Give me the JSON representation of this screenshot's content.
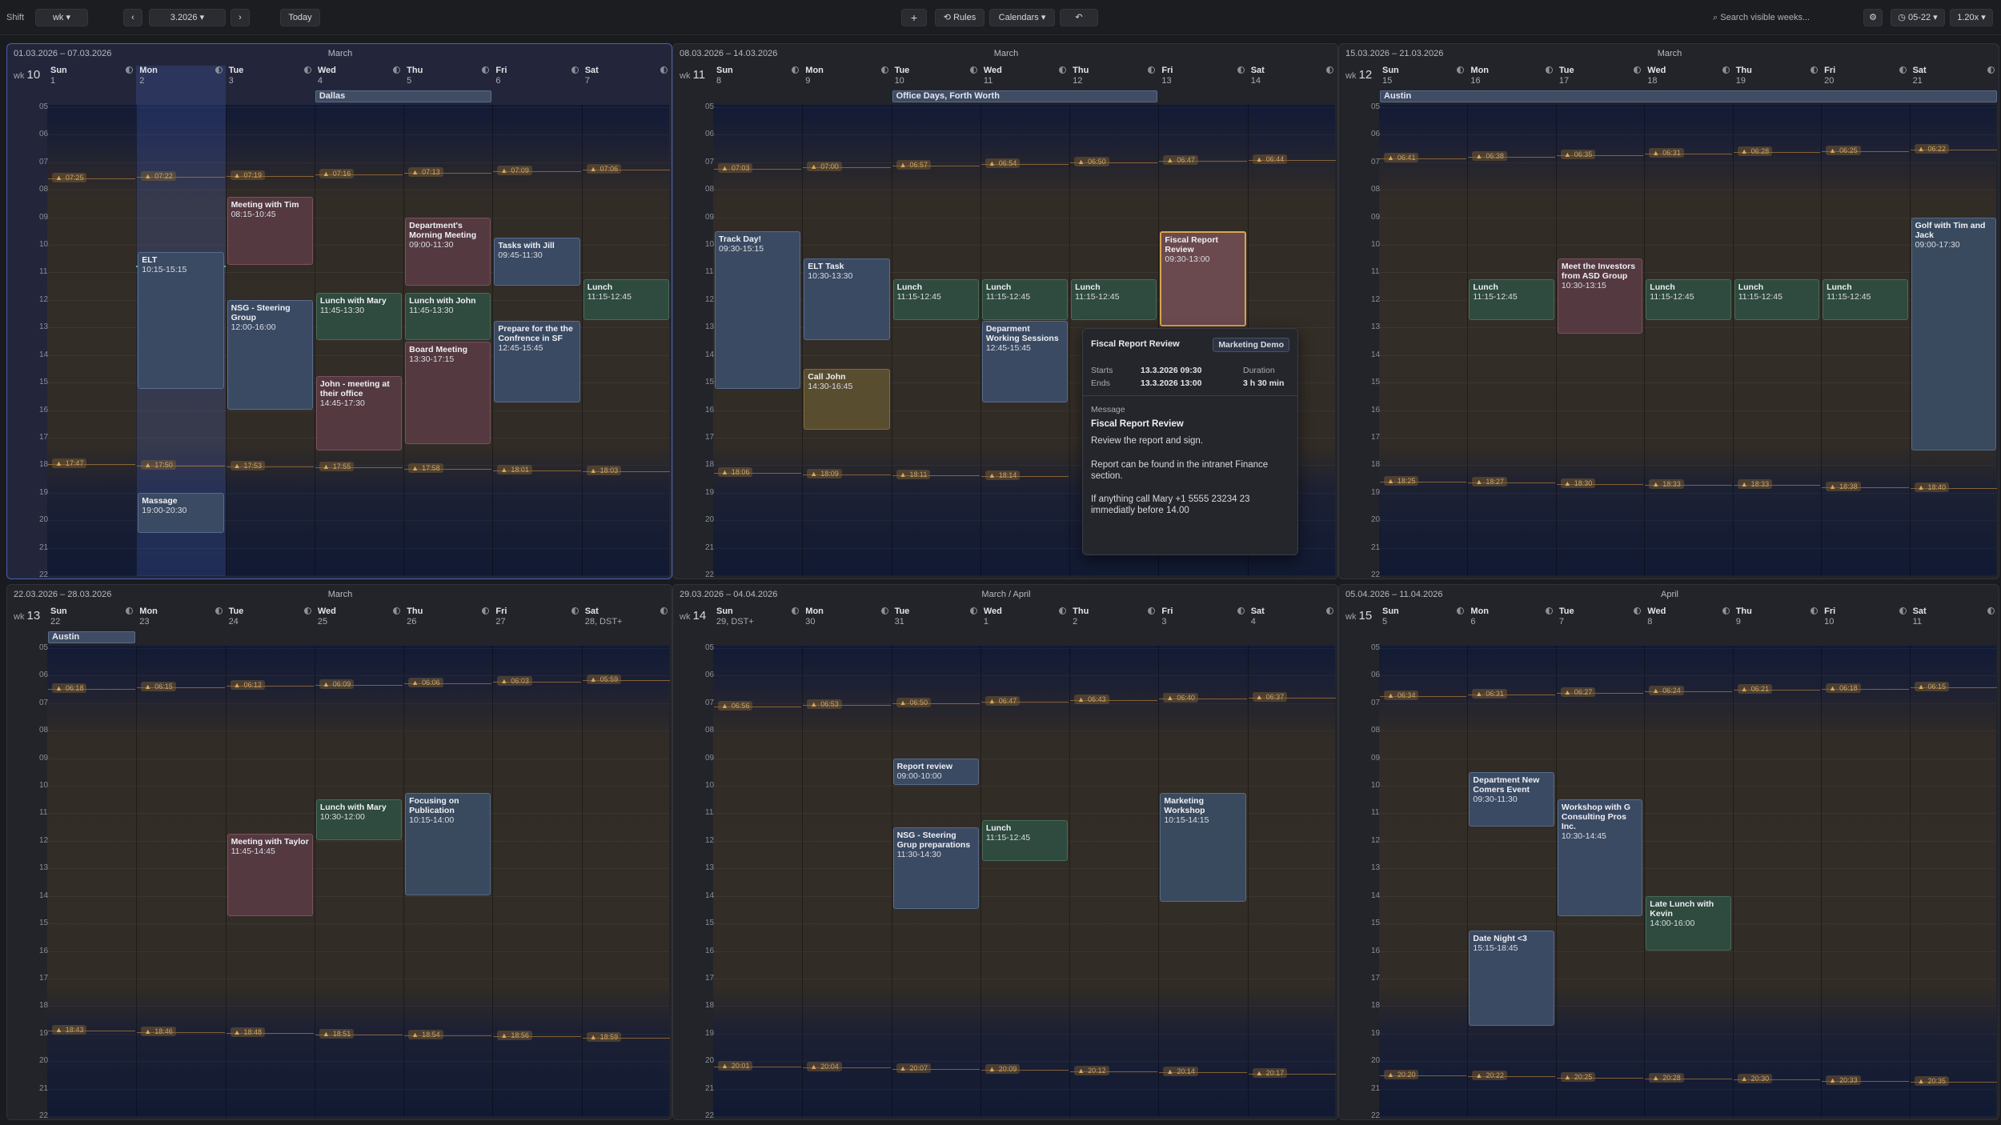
{
  "toolbar": {
    "shift_label": "Shift",
    "view_select": "wk",
    "date_select": "3.2026",
    "today_label": "Today",
    "add_label": "+",
    "rules_label": "Rules",
    "calendars_label": "Calendars",
    "search_placeholder": "Search visible weeks...",
    "hours_label": "05-22",
    "zoom_label": "1.20x"
  },
  "hours": [
    "05",
    "06",
    "07",
    "08",
    "09",
    "10",
    "11",
    "12",
    "13",
    "14",
    "15",
    "16",
    "17",
    "18",
    "19",
    "20",
    "21",
    "22"
  ],
  "weeks": [
    {
      "range": "01.03.2026 – 07.03.2026",
      "month": "March",
      "wk": "wk",
      "wknum": "10",
      "current": true,
      "days": [
        {
          "name": "Sun",
          "num": "1"
        },
        {
          "name": "Mon",
          "num": "2"
        },
        {
          "name": "Tue",
          "num": "3"
        },
        {
          "name": "Wed",
          "num": "4"
        },
        {
          "name": "Thu",
          "num": "5"
        },
        {
          "name": "Fri",
          "num": "6"
        },
        {
          "name": "Sat",
          "num": "7"
        }
      ],
      "today_col": 1,
      "now": 10.75,
      "sunrise": [
        "07:25",
        "07:22",
        "07:19",
        "07:16",
        "07:13",
        "07:09",
        "07:06"
      ],
      "sunset": [
        "17:47",
        "17:50",
        "17:53",
        "17:55",
        "17:58",
        "18:01",
        "18:03"
      ],
      "allday": [
        {
          "title": "Dallas",
          "start": 3,
          "end": 5
        }
      ],
      "events": [
        {
          "title": "Meeting with Tim",
          "time": "08:15-10:45",
          "day": 2,
          "start": 8.25,
          "end": 10.75,
          "color": "red"
        },
        {
          "title": "ELT",
          "time": "10:15-15:15",
          "day": 1,
          "start": 10.25,
          "end": 15.25,
          "color": "blue"
        },
        {
          "title": "NSG - Steering Group",
          "time": "12:00-16:00",
          "day": 2,
          "start": 12,
          "end": 16,
          "color": "blue"
        },
        {
          "title": "Lunch with Mary",
          "time": "11:45-13:30",
          "day": 3,
          "start": 11.75,
          "end": 13.5,
          "color": "green"
        },
        {
          "title": "John - meeting at their office",
          "time": "14:45-17:30",
          "day": 3,
          "start": 14.75,
          "end": 17.5,
          "color": "red"
        },
        {
          "title": "Department's Morning Meeting",
          "time": "09:00-11:30",
          "day": 4,
          "start": 9,
          "end": 11.5,
          "color": "red"
        },
        {
          "title": "Lunch with John",
          "time": "11:45-13:30",
          "day": 4,
          "start": 11.75,
          "end": 13.5,
          "color": "green"
        },
        {
          "title": "Board Meeting",
          "time": "13:30-17:15",
          "day": 4,
          "start": 13.5,
          "end": 17.25,
          "color": "red"
        },
        {
          "title": "Tasks with Jill",
          "time": "09:45-11:30",
          "day": 5,
          "start": 9.75,
          "end": 11.5,
          "color": "blue"
        },
        {
          "title": "Prepare for the the Confrence in SF",
          "time": "12:45-15:45",
          "day": 5,
          "start": 12.75,
          "end": 15.75,
          "color": "blue"
        },
        {
          "title": "Lunch",
          "time": "11:15-12:45",
          "day": 6,
          "start": 11.25,
          "end": 12.75,
          "color": "green"
        },
        {
          "title": "Massage",
          "time": "19:00-20:30",
          "day": 1,
          "start": 19,
          "end": 20.5,
          "color": "blue"
        }
      ]
    },
    {
      "range": "08.03.2026 – 14.03.2026",
      "month": "March",
      "wk": "wk",
      "wknum": "11",
      "current": false,
      "days": [
        {
          "name": "Sun",
          "num": "8"
        },
        {
          "name": "Mon",
          "num": "9"
        },
        {
          "name": "Tue",
          "num": "10"
        },
        {
          "name": "Wed",
          "num": "11"
        },
        {
          "name": "Thu",
          "num": "12"
        },
        {
          "name": "Fri",
          "num": "13"
        },
        {
          "name": "Sat",
          "num": "14"
        }
      ],
      "sunrise": [
        "07:03",
        "07:00",
        "06:57",
        "06:54",
        "06:50",
        "06:47",
        "06:44"
      ],
      "sunset": [
        "18:06",
        "18:09",
        "18:11",
        "18:14",
        "",
        "",
        ""
      ],
      "allday": [
        {
          "title": "Office Days, Forth Worth",
          "start": 2,
          "end": 5
        }
      ],
      "events": [
        {
          "title": "Track Day!",
          "time": "09:30-15:15",
          "day": 0,
          "start": 9.5,
          "end": 15.25,
          "color": "blue"
        },
        {
          "title": "ELT Task",
          "time": "10:30-13:30",
          "day": 1,
          "start": 10.5,
          "end": 13.5,
          "color": "blue"
        },
        {
          "title": "Call John",
          "time": "14:30-16:45",
          "day": 1,
          "start": 14.5,
          "end": 16.75,
          "color": "olive"
        },
        {
          "title": "Lunch",
          "time": "11:15-12:45",
          "day": 2,
          "start": 11.25,
          "end": 12.75,
          "color": "green"
        },
        {
          "title": "Lunch",
          "time": "11:15-12:45",
          "day": 3,
          "start": 11.25,
          "end": 12.75,
          "color": "green"
        },
        {
          "title": "Deparment Working Sessions",
          "time": "12:45-15:45",
          "day": 3,
          "start": 12.75,
          "end": 15.75,
          "color": "blue"
        },
        {
          "title": "Lunch",
          "time": "11:15-12:45",
          "day": 4,
          "start": 11.25,
          "end": 12.75,
          "color": "green"
        },
        {
          "title": "Fiscal Report Review",
          "time": "09:30-13:00",
          "day": 5,
          "start": 9.5,
          "end": 13,
          "color": "sel"
        }
      ]
    },
    {
      "range": "15.03.2026 – 21.03.2026",
      "month": "March",
      "wk": "wk",
      "wknum": "12",
      "current": false,
      "days": [
        {
          "name": "Sun",
          "num": "15"
        },
        {
          "name": "Mon",
          "num": "16"
        },
        {
          "name": "Tue",
          "num": "17"
        },
        {
          "name": "Wed",
          "num": "18"
        },
        {
          "name": "Thu",
          "num": "19"
        },
        {
          "name": "Fri",
          "num": "20"
        },
        {
          "name": "Sat",
          "num": "21"
        }
      ],
      "sunrise": [
        "06:41",
        "06:38",
        "06:35",
        "06:31",
        "06:28",
        "06:25",
        "06:22"
      ],
      "sunset": [
        "18:25",
        "18:27",
        "18:30",
        "18:33",
        "18:33",
        "18:38",
        "18:40"
      ],
      "allday": [
        {
          "title": "Austin",
          "start": 0,
          "end": 7
        }
      ],
      "events": [
        {
          "title": "Lunch",
          "time": "11:15-12:45",
          "day": 1,
          "start": 11.25,
          "end": 12.75,
          "color": "green"
        },
        {
          "title": "Meet the Investors from ASD Group",
          "time": "10:30-13:15",
          "day": 2,
          "start": 10.5,
          "end": 13.25,
          "color": "red"
        },
        {
          "title": "Lunch",
          "time": "11:15-12:45",
          "day": 3,
          "start": 11.25,
          "end": 12.75,
          "color": "green"
        },
        {
          "title": "Lunch",
          "time": "11:15-12:45",
          "day": 4,
          "start": 11.25,
          "end": 12.75,
          "color": "green"
        },
        {
          "title": "Lunch",
          "time": "11:15-12:45",
          "day": 5,
          "start": 11.25,
          "end": 12.75,
          "color": "green"
        },
        {
          "title": "Golf with Tim and Jack",
          "time": "09:00-17:30",
          "day": 6,
          "start": 9,
          "end": 17.5,
          "color": "mid"
        }
      ]
    },
    {
      "range": "22.03.2026 – 28.03.2026",
      "month": "March",
      "wk": "wk",
      "wknum": "13",
      "current": false,
      "days": [
        {
          "name": "Sun",
          "num": "22"
        },
        {
          "name": "Mon",
          "num": "23"
        },
        {
          "name": "Tue",
          "num": "24"
        },
        {
          "name": "Wed",
          "num": "25"
        },
        {
          "name": "Thu",
          "num": "26"
        },
        {
          "name": "Fri",
          "num": "27"
        },
        {
          "name": "Sat",
          "num": "28, DST+"
        }
      ],
      "sunrise": [
        "06:18",
        "06:15",
        "06:12",
        "06:09",
        "06:06",
        "06:03",
        "05:59"
      ],
      "sunset": [
        "18:43",
        "18:46",
        "18:48",
        "18:51",
        "18:54",
        "18:56",
        "18:59"
      ],
      "allday": [
        {
          "title": "Austin",
          "start": 0,
          "end": 1
        }
      ],
      "events": [
        {
          "title": "Meeting with Taylor",
          "time": "11:45-14:45",
          "day": 2,
          "start": 11.75,
          "end": 14.75,
          "color": "red"
        },
        {
          "title": "Lunch with Mary",
          "time": "10:30-12:00",
          "day": 3,
          "start": 10.5,
          "end": 12,
          "color": "green"
        },
        {
          "title": "Focusing on Publication",
          "time": "10:15-14:00",
          "day": 4,
          "start": 10.25,
          "end": 14,
          "color": "mid"
        }
      ]
    },
    {
      "range": "29.03.2026 – 04.04.2026",
      "month": "March / April",
      "wk": "wk",
      "wknum": "14",
      "current": false,
      "days": [
        {
          "name": "Sun",
          "num": "29, DST+"
        },
        {
          "name": "Mon",
          "num": "30"
        },
        {
          "name": "Tue",
          "num": "31"
        },
        {
          "name": "Wed",
          "num": "1"
        },
        {
          "name": "Thu",
          "num": "2"
        },
        {
          "name": "Fri",
          "num": "3"
        },
        {
          "name": "Sat",
          "num": "4"
        }
      ],
      "sunrise": [
        "06:56",
        "06:53",
        "06:50",
        "06:47",
        "06:43",
        "06:40",
        "06:37"
      ],
      "sunset": [
        "20:01",
        "20:04",
        "20:07",
        "20:09",
        "20:12",
        "20:14",
        "20:17"
      ],
      "allday": [],
      "events": [
        {
          "title": "Report review",
          "time": "09:00-10:00",
          "day": 2,
          "start": 9,
          "end": 10,
          "color": "blue"
        },
        {
          "title": "NSG - Steering Grup preparations",
          "time": "11:30-14:30",
          "day": 2,
          "start": 11.5,
          "end": 14.5,
          "color": "blue"
        },
        {
          "title": "Lunch",
          "time": "11:15-12:45",
          "day": 3,
          "start": 11.25,
          "end": 12.75,
          "color": "green"
        },
        {
          "title": "Marketing Workshop",
          "time": "10:15-14:15",
          "day": 5,
          "start": 10.25,
          "end": 14.25,
          "color": "mid"
        }
      ]
    },
    {
      "range": "05.04.2026 – 11.04.2026",
      "month": "April",
      "wk": "wk",
      "wknum": "15",
      "current": false,
      "days": [
        {
          "name": "Sun",
          "num": "5"
        },
        {
          "name": "Mon",
          "num": "6"
        },
        {
          "name": "Tue",
          "num": "7"
        },
        {
          "name": "Wed",
          "num": "8"
        },
        {
          "name": "Thu",
          "num": "9"
        },
        {
          "name": "Fri",
          "num": "10"
        },
        {
          "name": "Sat",
          "num": "11"
        }
      ],
      "sunrise": [
        "06:34",
        "06:31",
        "06:27",
        "06:24",
        "06:21",
        "06:18",
        "06:15"
      ],
      "sunset": [
        "20:20",
        "20:22",
        "20:25",
        "20:28",
        "20:30",
        "20:33",
        "20:35"
      ],
      "allday": [],
      "events": [
        {
          "title": "Department New Comers Event",
          "time": "09:30-11:30",
          "day": 1,
          "start": 9.5,
          "end": 11.5,
          "color": "blue"
        },
        {
          "title": "Workshop with G Consulting Pros Inc.",
          "time": "10:30-14:45",
          "day": 2,
          "start": 10.5,
          "end": 14.75,
          "color": "blue"
        },
        {
          "title": "Late Lunch with Kevin",
          "time": "14:00-16:00",
          "day": 3,
          "start": 14,
          "end": 16,
          "color": "green"
        },
        {
          "title": "Date Night <3",
          "time": "15:15-18:45",
          "day": 1,
          "start": 15.25,
          "end": 18.75,
          "color": "blue"
        }
      ]
    }
  ],
  "popup": {
    "title": "Fiscal Report Review",
    "calendar": "Marketing Demo",
    "starts_label": "Starts",
    "starts": "13.3.2026 09:30",
    "ends_label": "Ends",
    "ends": "13.3.2026 13:00",
    "duration_label": "Duration",
    "duration": "3 h 30 min",
    "message_label": "Message",
    "message_title": "Fiscal Report Review",
    "message_lines": [
      "Review the report and sign.",
      "Report can be found in the intranet Finance section.",
      "If anything call Mary +1 5555 23234 23 immediatly before 14.00"
    ]
  }
}
